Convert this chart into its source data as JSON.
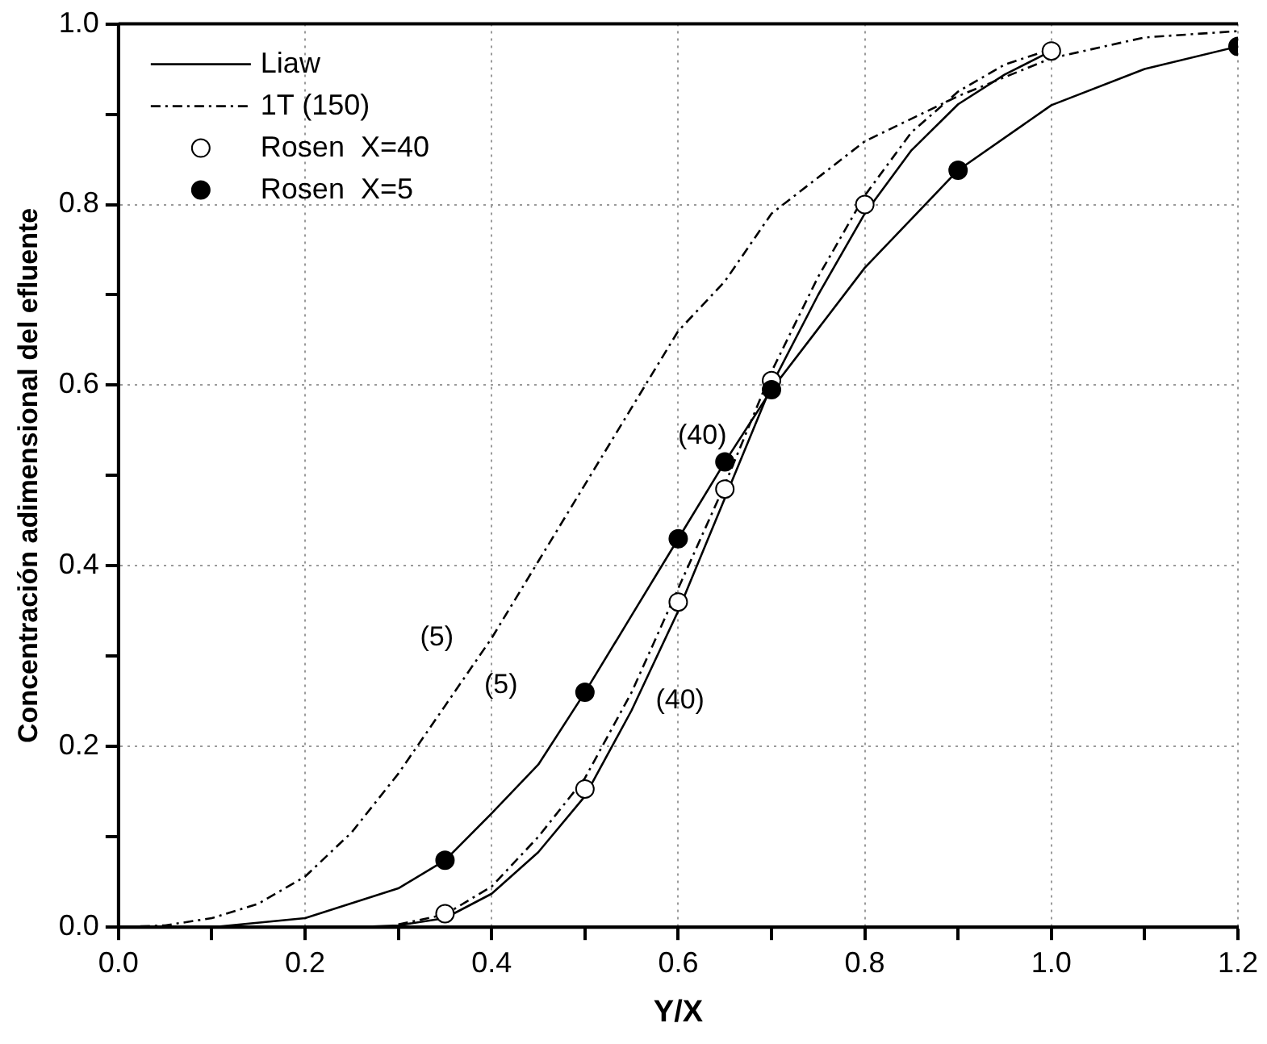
{
  "chart_data": {
    "type": "line",
    "xlabel": "Y/X",
    "ylabel": "Concentración adimensional del efluente",
    "xlim": [
      0,
      1.2
    ],
    "ylim": [
      0,
      1
    ],
    "xticks": [
      {
        "value": 0,
        "label": "0.0"
      },
      {
        "value": 0.1,
        "label": null
      },
      {
        "value": 0.2,
        "label": "0.2"
      },
      {
        "value": 0.3,
        "label": null
      },
      {
        "value": 0.4,
        "label": "0.4"
      },
      {
        "value": 0.5,
        "label": null
      },
      {
        "value": 0.6,
        "label": "0.6"
      },
      {
        "value": 0.7,
        "label": null
      },
      {
        "value": 0.8,
        "label": "0.8"
      },
      {
        "value": 0.9,
        "label": null
      },
      {
        "value": 1,
        "label": "1.0"
      },
      {
        "value": 1.1,
        "label": null
      },
      {
        "value": 1.2,
        "label": "1.2"
      }
    ],
    "yticks": [
      {
        "value": 0,
        "label": "0.0"
      },
      {
        "value": 0.1,
        "label": null
      },
      {
        "value": 0.2,
        "label": "0.2"
      },
      {
        "value": 0.3,
        "label": null
      },
      {
        "value": 0.4,
        "label": "0.4"
      },
      {
        "value": 0.5,
        "label": null
      },
      {
        "value": 0.6,
        "label": "0.6"
      },
      {
        "value": 0.7,
        "label": null
      },
      {
        "value": 0.8,
        "label": "0.8"
      },
      {
        "value": 0.9,
        "label": null
      },
      {
        "value": 1,
        "label": "1.0"
      }
    ],
    "grid": true,
    "legend": "top left",
    "series": [
      {
        "name": "Liaw",
        "type": "line",
        "line_style": "solid",
        "marker": "none",
        "color": "#000000",
        "x": [
          0.1,
          0.2,
          0.3,
          0.35,
          0.4,
          0.45,
          0.5,
          0.55,
          0.6,
          0.65,
          0.7,
          0.8,
          0.9,
          1.0,
          1.1,
          1.2
        ],
        "values": [
          0.0,
          0.01,
          0.043,
          0.074,
          0.126,
          0.18,
          0.26,
          0.345,
          0.43,
          0.515,
          0.595,
          0.73,
          0.838,
          0.91,
          0.95,
          0.975
        ]
      },
      {
        "type": "line",
        "line_style": "solid",
        "marker": "none",
        "color": "#000000",
        "x": [
          0.25,
          0.3,
          0.35,
          0.4,
          0.45,
          0.5,
          0.55,
          0.6,
          0.65,
          0.7,
          0.75,
          0.8,
          0.85,
          0.9,
          0.95,
          1.0
        ],
        "values": [
          0.0,
          0.002,
          0.01,
          0.037,
          0.083,
          0.145,
          0.24,
          0.35,
          0.475,
          0.6,
          0.7,
          0.79,
          0.86,
          0.911,
          0.944,
          0.97
        ]
      },
      {
        "name": "1T (150)",
        "type": "line",
        "line_style": "dashed",
        "marker": "none",
        "color": "#000000",
        "x": [
          0.0,
          0.05,
          0.1,
          0.15,
          0.2,
          0.25,
          0.3,
          0.35,
          0.4,
          0.45,
          0.5,
          0.55,
          0.6,
          0.65,
          0.7,
          0.8,
          0.9,
          1.0,
          1.1,
          1.2
        ],
        "values": [
          0.0,
          0.002,
          0.01,
          0.026,
          0.056,
          0.105,
          0.17,
          0.245,
          0.32,
          0.405,
          0.49,
          0.575,
          0.66,
          0.715,
          0.79,
          0.87,
          0.92,
          0.962,
          0.985,
          0.992
        ]
      },
      {
        "type": "line",
        "line_style": "dashed",
        "marker": "none",
        "color": "#000000",
        "x": [
          0.3,
          0.35,
          0.4,
          0.45,
          0.5,
          0.55,
          0.6,
          0.65,
          0.7,
          0.75,
          0.8,
          0.85,
          0.9,
          0.95,
          1.0
        ],
        "values": [
          0.003,
          0.014,
          0.045,
          0.1,
          0.165,
          0.26,
          0.375,
          0.49,
          0.615,
          0.72,
          0.81,
          0.88,
          0.925,
          0.955,
          0.972
        ]
      },
      {
        "name": "Rosen  X=40",
        "type": "scatter",
        "marker": "circle",
        "color": "#ffffff",
        "x": [
          0.35,
          0.5,
          0.6,
          0.65,
          0.7,
          0.8,
          1.0
        ],
        "values": [
          0.015,
          0.153,
          0.36,
          0.485,
          0.605,
          0.8,
          0.97
        ]
      },
      {
        "name": "Rosen  X=5",
        "type": "scatter",
        "marker": "circle",
        "color": "#000000",
        "x": [
          0.35,
          0.5,
          0.6,
          0.65,
          0.7,
          0.9,
          1.2
        ],
        "values": [
          0.074,
          0.26,
          0.43,
          0.515,
          0.595,
          0.838,
          0.975
        ]
      }
    ],
    "annotations": [
      {
        "text": "(5)",
        "x": 0.4,
        "y": 0.32
      },
      {
        "text": "(5)",
        "x": 0.5,
        "y": 0.26
      },
      {
        "text": "(40)",
        "x": 0.55,
        "y": 0.24
      },
      {
        "text": "(40)",
        "x": 0.65,
        "y": 0.49
      }
    ]
  }
}
